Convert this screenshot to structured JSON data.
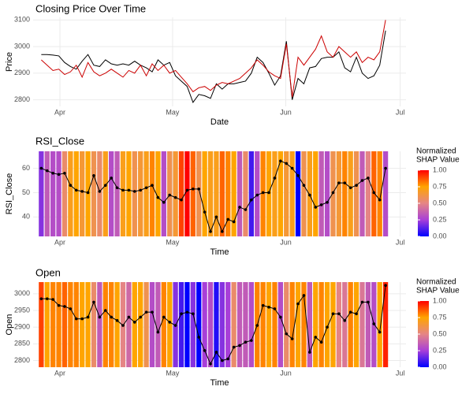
{
  "chart_data": [
    {
      "type": "line",
      "title": "Closing Price Over Time",
      "x_label": "Date",
      "y_label": "Price",
      "xlim": [
        -1.4,
        62.5
      ],
      "xticks": [
        {
          "value": 3.2,
          "label": "Apr"
        },
        {
          "value": 22.5,
          "label": "May"
        },
        {
          "value": 41.9,
          "label": "Jun"
        },
        {
          "value": 61.5,
          "label": "Jul"
        }
      ],
      "ylim": [
        2775,
        3110
      ],
      "yticks": [
        2800,
        2900,
        3000,
        3100
      ],
      "grid": true,
      "series": [
        {
          "color": "#000000",
          "values": [
            2970,
            2970,
            2968,
            2965,
            2940,
            2925,
            2915,
            2945,
            2970,
            2930,
            2925,
            2950,
            2935,
            2930,
            2935,
            2930,
            2945,
            2930,
            2920,
            2905,
            2950,
            2930,
            2940,
            2890,
            2870,
            2850,
            2790,
            2820,
            2815,
            2805,
            2860,
            2840,
            2860,
            2860,
            2865,
            2870,
            2900,
            2960,
            2940,
            2900,
            2855,
            2890,
            3020,
            2800,
            2880,
            2860,
            2920,
            2925,
            2955,
            2960,
            2960,
            2980,
            2920,
            2905,
            2960,
            2900,
            2880,
            2890,
            2930,
            3060
          ]
        },
        {
          "color": "#cc0000",
          "values": [
            2950,
            2930,
            2910,
            2915,
            2895,
            2905,
            2930,
            2885,
            2940,
            2905,
            2890,
            2900,
            2915,
            2900,
            2885,
            2910,
            2900,
            2930,
            2890,
            2935,
            2910,
            2930,
            2900,
            2910,
            2885,
            2860,
            2830,
            2845,
            2850,
            2835,
            2855,
            2865,
            2860,
            2870,
            2880,
            2900,
            2920,
            2950,
            2930,
            2905,
            2890,
            2880,
            3010,
            2810,
            2960,
            2930,
            2960,
            2990,
            3040,
            2980,
            2960,
            3000,
            2980,
            2960,
            2980,
            2940,
            2960,
            2950,
            2980,
            3100
          ]
        }
      ]
    },
    {
      "type": "line",
      "title": "RSI_Close",
      "x_label": "Time",
      "y_label": "RSI_Close",
      "xlim": [
        -1.4,
        62.5
      ],
      "xticks": [
        {
          "value": 3.2,
          "label": "Apr"
        },
        {
          "value": 22.5,
          "label": "May"
        },
        {
          "value": 41.9,
          "label": "Jun"
        },
        {
          "value": 61.5,
          "label": "Jul"
        }
      ],
      "ylim": [
        32,
        67
      ],
      "yticks": [
        40,
        50,
        60
      ],
      "grid": true,
      "series": [
        {
          "color": "#000000",
          "values": [
            60,
            59,
            58,
            57.5,
            58,
            53,
            51,
            50.5,
            50,
            57,
            50.5,
            53,
            56,
            52,
            51,
            51,
            50.5,
            51,
            52,
            53,
            48,
            46,
            49,
            48,
            47,
            51,
            51.5,
            51.5,
            42,
            34,
            40,
            34,
            39,
            38,
            44,
            43,
            47,
            49,
            50,
            50,
            56,
            63,
            62,
            60,
            57,
            53,
            49,
            44,
            45,
            46,
            50,
            54,
            54,
            52,
            53,
            55,
            56,
            50,
            47,
            60
          ]
        }
      ],
      "shap": [
        0.2,
        0.35,
        0.3,
        0.3,
        0.55,
        0.7,
        0.75,
        0.65,
        0.75,
        0.6,
        0.55,
        0.7,
        0.3,
        0.35,
        0.7,
        0.75,
        0.6,
        0.65,
        0.7,
        0.8,
        0.75,
        0.3,
        0.6,
        0.65,
        0.9,
        1.0,
        0.85,
        0.6,
        0.75,
        0.7,
        0.7,
        0.85,
        0.8,
        0.75,
        0.35,
        0.55,
        0.1,
        0.3,
        0.8,
        0.75,
        0.7,
        0.75,
        0.65,
        0.7,
        0.0,
        0.6,
        0.7,
        0.75,
        0.35,
        0.3,
        0.6,
        0.65,
        0.8,
        0.7,
        0.6,
        0.35,
        0.5,
        0.85,
        0.8,
        0.3
      ],
      "colorscale": [
        "#0000ff",
        "#a83fd8",
        "#e58585",
        "#ffa500",
        "#ff0000"
      ],
      "legend_title": [
        "Normalized",
        "SHAP Value"
      ],
      "legend_ticks": [
        {
          "value": 0,
          "label": "0.00"
        },
        {
          "value": 0.25,
          "label": "0.25"
        },
        {
          "value": 0.5,
          "label": "0.50"
        },
        {
          "value": 0.75,
          "label": "0.75"
        },
        {
          "value": 1,
          "label": "1.00"
        }
      ]
    },
    {
      "type": "line",
      "title": "Open",
      "x_label": "Time",
      "y_label": "Open",
      "xlim": [
        -1.4,
        62.5
      ],
      "xticks": [
        {
          "value": 3.2,
          "label": "Apr"
        },
        {
          "value": 22.5,
          "label": "May"
        },
        {
          "value": 41.9,
          "label": "Jun"
        },
        {
          "value": 61.5,
          "label": "Jul"
        }
      ],
      "ylim": [
        2780,
        3035
      ],
      "yticks": [
        2800,
        2850,
        2900,
        2950,
        3000
      ],
      "grid": true,
      "series": [
        {
          "color": "#000000",
          "values": [
            2985,
            2985,
            2983,
            2965,
            2962,
            2955,
            2925,
            2925,
            2930,
            2975,
            2930,
            2950,
            2930,
            2920,
            2905,
            2930,
            2915,
            2930,
            2945,
            2945,
            2885,
            2930,
            2915,
            2905,
            2940,
            2945,
            2940,
            2870,
            2830,
            2790,
            2825,
            2800,
            2805,
            2840,
            2845,
            2855,
            2860,
            2905,
            2965,
            2960,
            2955,
            2930,
            2880,
            2865,
            2970,
            2995,
            2825,
            2870,
            2855,
            2900,
            2940,
            2940,
            2920,
            2945,
            2940,
            2975,
            2975,
            2910,
            2885,
            3025
          ]
        }
      ],
      "shap": [
        0.9,
        0.75,
        0.8,
        0.8,
        0.85,
        0.8,
        0.8,
        0.75,
        0.75,
        0.55,
        0.35,
        0.8,
        0.8,
        0.75,
        0.5,
        0.4,
        0.75,
        0.75,
        0.6,
        0.3,
        0.35,
        0.8,
        0.75,
        0.2,
        0.1,
        0.0,
        0.2,
        0.0,
        0.25,
        0.3,
        0.05,
        0.2,
        0.25,
        0.55,
        0.35,
        0.35,
        0.3,
        0.8,
        0.8,
        0.75,
        0.8,
        0.3,
        0.55,
        0.8,
        0.75,
        0.8,
        0.35,
        0.75,
        0.8,
        0.75,
        0.75,
        0.5,
        0.45,
        0.8,
        0.75,
        0.45,
        0.35,
        0.3,
        0.75,
        0.95
      ],
      "colorscale": [
        "#0000ff",
        "#a83fd8",
        "#e58585",
        "#ffa500",
        "#ff0000"
      ],
      "legend_title": [
        "Normalized",
        "SHAP Value"
      ],
      "legend_ticks": [
        {
          "value": 0,
          "label": "0.00"
        },
        {
          "value": 0.25,
          "label": "0.25"
        },
        {
          "value": 0.5,
          "label": "0.50"
        },
        {
          "value": 0.75,
          "label": "0.75"
        },
        {
          "value": 1,
          "label": "1.00"
        }
      ]
    }
  ]
}
